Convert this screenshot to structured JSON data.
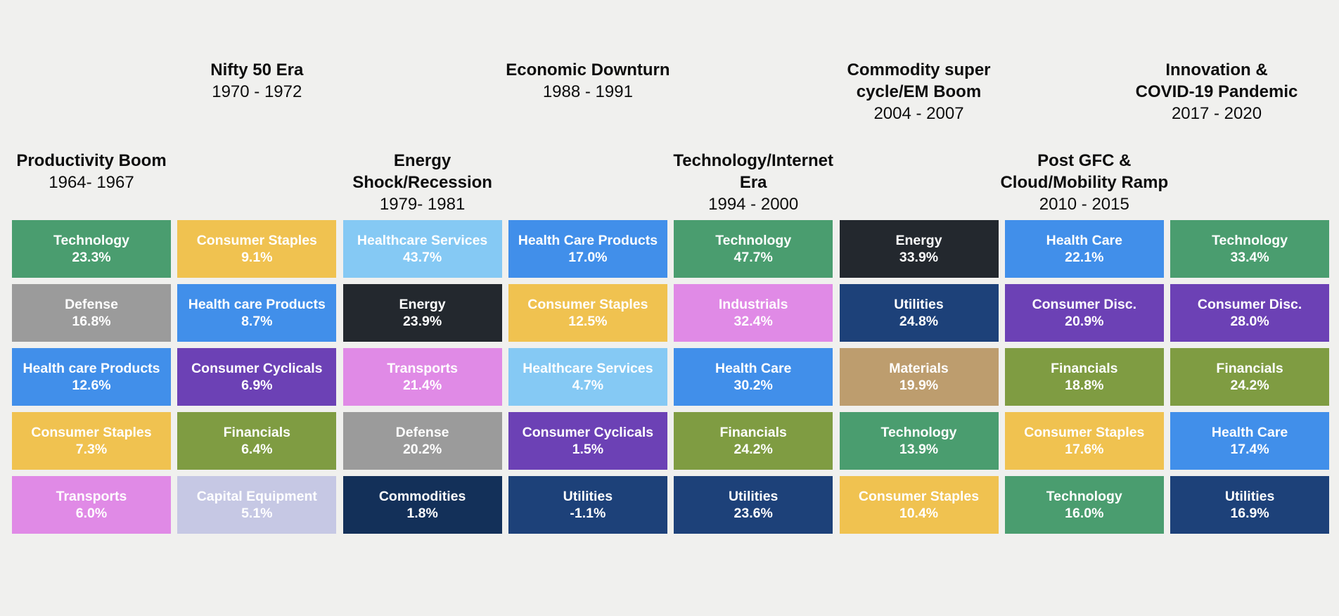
{
  "chart_data": {
    "type": "heatmap",
    "title": "",
    "subtitle": "",
    "legend_position": "none",
    "grid": "off",
    "colors": {
      "green": "#4a9d6f",
      "yellow": "#f0c250",
      "gray": "#9b9b9b",
      "blue": "#418fea",
      "purple": "#6c41b5",
      "olive": "#7f9c42",
      "pink": "#e08ae6",
      "lavender": "#c6c8e4",
      "charcoal": "#23282e",
      "navy": "#1d4179",
      "darknavy": "#133059",
      "lightblue": "#85c9f4",
      "tan": "#bd9d6e",
      "background": "#f0f0ee",
      "header_text": "#0d0d0d",
      "tile_text": "#ffffff"
    },
    "eras": [
      {
        "title_lines": [
          "Productivity Boom"
        ],
        "dates": "1964- 1967",
        "header_row": "lower",
        "sectors": [
          {
            "name": "Technology",
            "value": "23.3%",
            "pct": 23.3,
            "color": "green"
          },
          {
            "name": "Defense",
            "value": "16.8%",
            "pct": 16.8,
            "color": "gray"
          },
          {
            "name": "Health care Products",
            "value": "12.6%",
            "pct": 12.6,
            "color": "blue"
          },
          {
            "name": "Consumer Staples",
            "value": "7.3%",
            "pct": 7.3,
            "color": "yellow"
          },
          {
            "name": "Transports",
            "value": "6.0%",
            "pct": 6.0,
            "color": "pink"
          }
        ]
      },
      {
        "title_lines": [
          "Nifty 50 Era"
        ],
        "dates": "1970 - 1972",
        "header_row": "upper",
        "sectors": [
          {
            "name": "Consumer Staples",
            "value": "9.1%",
            "pct": 9.1,
            "color": "yellow"
          },
          {
            "name": "Health care Products",
            "value": "8.7%",
            "pct": 8.7,
            "color": "blue"
          },
          {
            "name": "Consumer Cyclicals",
            "value": "6.9%",
            "pct": 6.9,
            "color": "purple"
          },
          {
            "name": "Financials",
            "value": "6.4%",
            "pct": 6.4,
            "color": "olive"
          },
          {
            "name": "Capital Equipment",
            "value": "5.1%",
            "pct": 5.1,
            "color": "lavender"
          }
        ]
      },
      {
        "title_lines": [
          "Energy",
          "Shock/Recession"
        ],
        "dates": "1979- 1981",
        "header_row": "lower",
        "sectors": [
          {
            "name": "Healthcare Services",
            "value": "43.7%",
            "pct": 43.7,
            "color": "lightblue"
          },
          {
            "name": "Energy",
            "value": "23.9%",
            "pct": 23.9,
            "color": "charcoal"
          },
          {
            "name": "Transports",
            "value": "21.4%",
            "pct": 21.4,
            "color": "pink"
          },
          {
            "name": "Defense",
            "value": "20.2%",
            "pct": 20.2,
            "color": "gray"
          },
          {
            "name": "Commodities",
            "value": "1.8%",
            "pct": 1.8,
            "color": "darknavy"
          }
        ]
      },
      {
        "title_lines": [
          "Economic Downturn"
        ],
        "dates": "1988 - 1991",
        "header_row": "upper",
        "sectors": [
          {
            "name": "Health Care Products",
            "value": "17.0%",
            "pct": 17.0,
            "color": "blue"
          },
          {
            "name": "Consumer Staples",
            "value": "12.5%",
            "pct": 12.5,
            "color": "yellow"
          },
          {
            "name": "Healthcare Services",
            "value": "4.7%",
            "pct": 4.7,
            "color": "lightblue"
          },
          {
            "name": "Consumer Cyclicals",
            "value": "1.5%",
            "pct": 1.5,
            "color": "purple"
          },
          {
            "name": "Utilities",
            "value": "-1.1%",
            "pct": -1.1,
            "color": "navy"
          }
        ]
      },
      {
        "title_lines": [
          "Technology/Internet",
          "Era"
        ],
        "dates": "1994 - 2000",
        "header_row": "lower",
        "sectors": [
          {
            "name": "Technology",
            "value": "47.7%",
            "pct": 47.7,
            "color": "green"
          },
          {
            "name": "Industrials",
            "value": "32.4%",
            "pct": 32.4,
            "color": "pink"
          },
          {
            "name": "Health Care",
            "value": "30.2%",
            "pct": 30.2,
            "color": "blue"
          },
          {
            "name": "Financials",
            "value": "24.2%",
            "pct": 24.2,
            "color": "olive"
          },
          {
            "name": "Utilities",
            "value": "23.6%",
            "pct": 23.6,
            "color": "navy"
          }
        ]
      },
      {
        "title_lines": [
          "Commodity super",
          "cycle/EM Boom"
        ],
        "dates": "2004 - 2007",
        "header_row": "upper",
        "sectors": [
          {
            "name": "Energy",
            "value": "33.9%",
            "pct": 33.9,
            "color": "charcoal"
          },
          {
            "name": "Utilities",
            "value": "24.8%",
            "pct": 24.8,
            "color": "navy"
          },
          {
            "name": "Materials",
            "value": "19.9%",
            "pct": 19.9,
            "color": "tan"
          },
          {
            "name": "Technology",
            "value": "13.9%",
            "pct": 13.9,
            "color": "green"
          },
          {
            "name": "Consumer Staples",
            "value": "10.4%",
            "pct": 10.4,
            "color": "yellow"
          }
        ]
      },
      {
        "title_lines": [
          "Post GFC &",
          "Cloud/Mobility Ramp"
        ],
        "dates": "2010 - 2015",
        "header_row": "lower",
        "sectors": [
          {
            "name": "Health Care",
            "value": "22.1%",
            "pct": 22.1,
            "color": "blue"
          },
          {
            "name": "Consumer Disc.",
            "value": "20.9%",
            "pct": 20.9,
            "color": "purple"
          },
          {
            "name": "Financials",
            "value": "18.8%",
            "pct": 18.8,
            "color": "olive"
          },
          {
            "name": "Consumer Staples",
            "value": "17.6%",
            "pct": 17.6,
            "color": "yellow"
          },
          {
            "name": "Technology",
            "value": "16.0%",
            "pct": 16.0,
            "color": "green"
          }
        ]
      },
      {
        "title_lines": [
          "Innovation &",
          "COVID-19 Pandemic"
        ],
        "dates": "2017 - 2020",
        "header_row": "upper",
        "sectors": [
          {
            "name": "Technology",
            "value": "33.4%",
            "pct": 33.4,
            "color": "green"
          },
          {
            "name": "Consumer Disc.",
            "value": "28.0%",
            "pct": 28.0,
            "color": "purple"
          },
          {
            "name": "Financials",
            "value": "24.2%",
            "pct": 24.2,
            "color": "olive"
          },
          {
            "name": "Health Care",
            "value": "17.4%",
            "pct": 17.4,
            "color": "blue"
          },
          {
            "name": "Utilities",
            "value": "16.9%",
            "pct": 16.9,
            "color": "navy"
          }
        ]
      }
    ]
  }
}
